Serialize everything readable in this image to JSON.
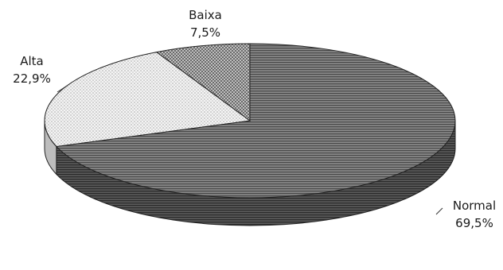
{
  "chart_data": {
    "type": "pie",
    "style": "3d",
    "title": "",
    "slices": [
      {
        "label": "Normal",
        "value": 69.5,
        "value_label": "69,5%",
        "fill": "horizontal-stripes",
        "color": "#6e6e6e"
      },
      {
        "label": "Alta",
        "value": 22.9,
        "value_label": "22,9%",
        "fill": "light-dots",
        "color": "#e8e8e8"
      },
      {
        "label": "Baixa",
        "value": 7.5,
        "value_label": "7,5%",
        "fill": "crosshatch",
        "color": "#9a9a9a"
      }
    ],
    "legend": "none",
    "data_labels": "outside"
  }
}
